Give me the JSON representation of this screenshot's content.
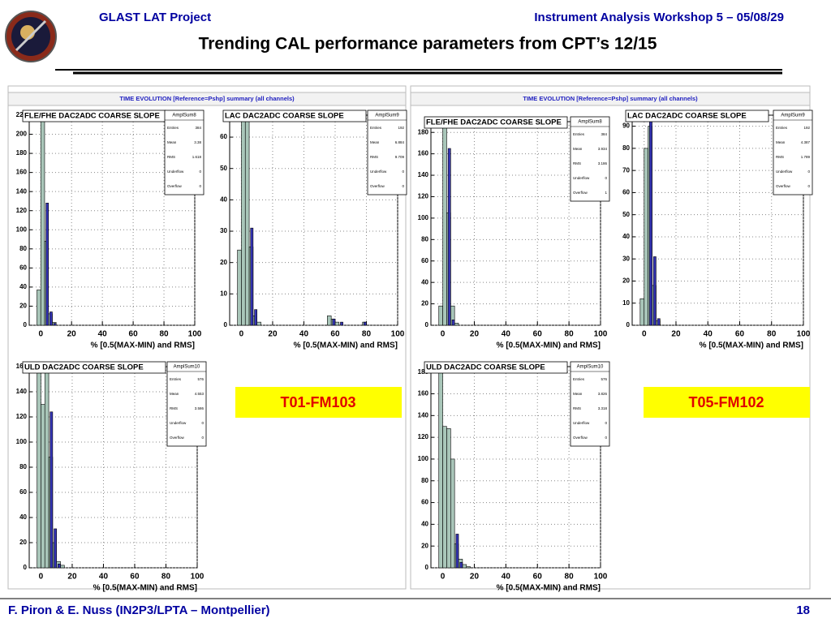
{
  "header": {
    "left": "GLAST LAT Project",
    "right": "Instrument Analysis Workshop 5 – 05/08/29",
    "title": "Trending CAL performance parameters from CPT’s 12/15"
  },
  "footer": {
    "left": "F. Piron & E. Nuss  (IN2P3/LPTA – Montpellier)",
    "page": "18"
  },
  "canvases": [
    {
      "caption": "TIME EVOLUTION [Reference=Pshp] summary (all channels)",
      "tag": "T01-FM103"
    },
    {
      "caption": "TIME EVOLUTION [Reference=Pshp] summary (all channels)",
      "tag": "T05-FM102"
    }
  ],
  "stat_labels": [
    "Entries",
    "Mean",
    "RMS",
    "Underflow",
    "Overflow"
  ],
  "chart_data": [
    {
      "type": "histogram",
      "title": "FLE/FHE DAC2ADC COARSE SLOPE",
      "xlabel": "% [0.5(MAX-MIN) and RMS]",
      "bins": [
        -2.5,
        0,
        2.5,
        5,
        7.5,
        10
      ],
      "series": [
        {
          "color": "#a9c6b9",
          "values": [
            37,
            220,
            88,
            12,
            3
          ]
        },
        {
          "color": "#3434b4",
          "values": [
            0,
            0,
            128,
            14,
            2
          ]
        }
      ],
      "xlim": [
        -7.5,
        100
      ],
      "xticks": [
        0,
        20,
        40,
        60,
        80,
        100
      ],
      "ylim": [
        0,
        220
      ],
      "yticks": [
        0,
        20,
        40,
        60,
        80,
        100,
        120,
        140,
        160,
        180,
        200,
        220
      ],
      "grid": true,
      "stats": {
        "name": "AmplSum8",
        "values": [
          384,
          3.38,
          1.618,
          0,
          0
        ]
      }
    },
    {
      "type": "histogram",
      "title": "LAC DAC2ADC COARSE SLOPE",
      "xlabel": "% [0.5(MAX-MIN) and RMS]",
      "bins": [
        -2.5,
        0,
        2.5,
        5,
        7.5,
        10,
        12.5,
        15,
        17.5,
        20,
        22.5,
        25,
        27.5,
        30,
        32.5,
        35,
        37.5,
        40,
        42.5,
        45,
        47.5,
        50,
        52.5,
        55,
        57.5,
        60,
        62.5,
        65,
        67.5,
        70,
        72.5,
        75,
        77.5,
        80,
        82.5
      ],
      "series": [
        {
          "color": "#a9c6b9",
          "values": [
            24,
            67,
            67,
            25,
            3,
            1,
            0,
            0,
            0,
            0,
            0,
            0,
            0,
            0,
            0,
            0,
            0,
            0,
            0,
            0,
            0,
            0,
            0,
            3,
            2,
            1,
            0,
            0,
            0,
            0,
            0,
            0,
            1,
            0
          ]
        },
        {
          "color": "#3434b4",
          "values": [
            0,
            0,
            0,
            31,
            5,
            0,
            0,
            0,
            0,
            0,
            0,
            0,
            0,
            0,
            0,
            0,
            0,
            0,
            0,
            0,
            0,
            0,
            0,
            0,
            2,
            0,
            1,
            0,
            0,
            0,
            0,
            0,
            1,
            0
          ]
        }
      ],
      "xlim": [
        -7.5,
        100
      ],
      "xticks": [
        0,
        20,
        40,
        60,
        80,
        100
      ],
      "ylim": [
        0,
        67
      ],
      "yticks": [
        0,
        10,
        20,
        30,
        40,
        50,
        60
      ],
      "grid": true,
      "stats": {
        "name": "AmplSum9",
        "values": [
          192,
          6.884,
          9.709,
          0,
          0
        ]
      }
    },
    {
      "type": "histogram",
      "title": "FLE/FHE DAC2ADC COARSE SLOPE",
      "xlabel": "% [0.5(MAX-MIN) and RMS]",
      "bins": [
        -2.5,
        0,
        2.5,
        5,
        7.5,
        10
      ],
      "series": [
        {
          "color": "#a9c6b9",
          "values": [
            18,
            190,
            105,
            18,
            2
          ]
        },
        {
          "color": "#3434b4",
          "values": [
            0,
            0,
            165,
            5,
            0
          ]
        }
      ],
      "xlim": [
        -7.5,
        100
      ],
      "xticks": [
        0,
        20,
        40,
        60,
        80,
        100
      ],
      "ylim": [
        0,
        190
      ],
      "yticks": [
        0,
        20,
        40,
        60,
        80,
        100,
        120,
        140,
        160,
        180
      ],
      "grid": true,
      "stats": {
        "name": "AmplSum8",
        "values": [
          384,
          3.934,
          3.186,
          0,
          1
        ]
      }
    },
    {
      "type": "histogram",
      "title": "LAC DAC2ADC COARSE SLOPE",
      "xlabel": "% [0.5(MAX-MIN) and RMS]",
      "bins": [
        -2.5,
        0,
        2.5,
        5,
        7.5,
        10
      ],
      "series": [
        {
          "color": "#a9c6b9",
          "values": [
            12,
            80,
            90,
            18,
            2
          ]
        },
        {
          "color": "#3434b4",
          "values": [
            0,
            0,
            95,
            31,
            3
          ]
        }
      ],
      "xlim": [
        -7.5,
        100
      ],
      "xticks": [
        0,
        20,
        40,
        60,
        80,
        100
      ],
      "ylim": [
        0,
        95
      ],
      "yticks": [
        0,
        10,
        20,
        30,
        40,
        50,
        60,
        70,
        80,
        90
      ],
      "grid": true,
      "stats": {
        "name": "AmplSum9",
        "values": [
          192,
          4.387,
          1.789,
          0,
          0
        ]
      }
    },
    {
      "type": "histogram",
      "title": "ULD DAC2ADC COARSE SLOPE",
      "xlabel": "% [0.5(MAX-MIN) and RMS]",
      "bins": [
        -2.5,
        0,
        2.5,
        5,
        7.5,
        10,
        12.5,
        15
      ],
      "series": [
        {
          "color": "#a9c6b9",
          "values": [
            160,
            130,
            160,
            88,
            20,
            5,
            2
          ]
        },
        {
          "color": "#3434b4",
          "values": [
            0,
            0,
            0,
            124,
            31,
            3,
            0
          ]
        }
      ],
      "xlim": [
        -7.5,
        100
      ],
      "xticks": [
        0,
        20,
        40,
        60,
        80,
        100
      ],
      "ylim": [
        0,
        160
      ],
      "yticks": [
        0,
        20,
        40,
        60,
        80,
        100,
        120,
        140,
        160
      ],
      "grid": true,
      "stats": {
        "name": "AmplSum10",
        "values": [
          576,
          4.553,
          3.586,
          0,
          0
        ]
      }
    },
    {
      "type": "histogram",
      "title": "ULD DAC2ADC COARSE SLOPE",
      "xlabel": "% [0.5(MAX-MIN) and RMS]",
      "bins": [
        -2.5,
        0,
        2.5,
        5,
        7.5,
        10,
        12.5,
        15,
        17.5
      ],
      "series": [
        {
          "color": "#a9c6b9",
          "values": [
            185,
            130,
            128,
            100,
            22,
            8,
            3,
            1
          ]
        },
        {
          "color": "#3434b4",
          "values": [
            0,
            0,
            0,
            0,
            31,
            5,
            0,
            0
          ]
        }
      ],
      "xlim": [
        -7.5,
        100
      ],
      "xticks": [
        0,
        20,
        40,
        60,
        80,
        100
      ],
      "ylim": [
        0,
        185
      ],
      "yticks": [
        0,
        20,
        40,
        60,
        80,
        100,
        120,
        140,
        160,
        180
      ],
      "grid": true,
      "stats": {
        "name": "AmplSum10",
        "values": [
          576,
          3.826,
          3.318,
          0,
          0
        ]
      }
    }
  ]
}
